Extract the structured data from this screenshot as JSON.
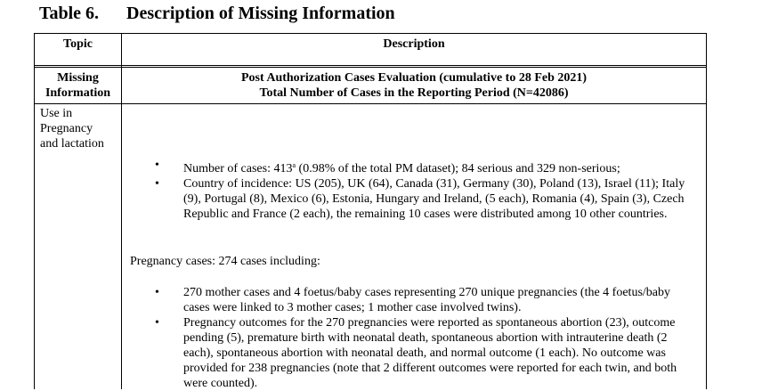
{
  "title": {
    "number": "Table 6.",
    "text": "Description of Missing Information"
  },
  "table": {
    "headers": {
      "topic": "Topic",
      "description": "Description"
    },
    "subheader": {
      "topic_line1": "Missing",
      "topic_line2": "Information",
      "desc_line1": "Post Authorization Cases Evaluation (cumulative to 28 Feb 2021)",
      "desc_line2": "Total Number of Cases in the Reporting Period (N=42086)"
    },
    "row": {
      "topic_line1": "Use in",
      "topic_line2": "Pregnancy",
      "topic_line3": "and lactation",
      "bullets1": [
        {
          "pre": "Number of cases: 413",
          "sup": "a",
          "post": " (0.98% of the total PM dataset); 84 serious and 329 non-serious;"
        },
        {
          "text": "Country of incidence: US (205), UK (64), Canada (31), Germany (30), Poland (13), Israel (11); Italy (9), Portugal (8), Mexico (6), Estonia, Hungary and Ireland, (5 each), Romania (4), Spain (3), Czech Republic and France (2 each), the remaining 10 cases were distributed among 10 other countries."
        }
      ],
      "paragraph": "Pregnancy cases: 274 cases including:",
      "bullets2": [
        "270 mother cases and 4 foetus/baby cases representing 270 unique pregnancies (the 4 foetus/baby cases were linked to 3 mother cases; 1 mother case involved twins).",
        "Pregnancy outcomes for the 270 pregnancies were reported as spontaneous abortion (23), outcome pending (5), premature birth with neonatal death, spontaneous abortion with intrauterine death (2 each), spontaneous abortion with neonatal death, and normal outcome (1 each). No outcome was provided for 238 pregnancies (note that 2 different outcomes were reported for each twin, and both were counted)."
      ]
    }
  }
}
